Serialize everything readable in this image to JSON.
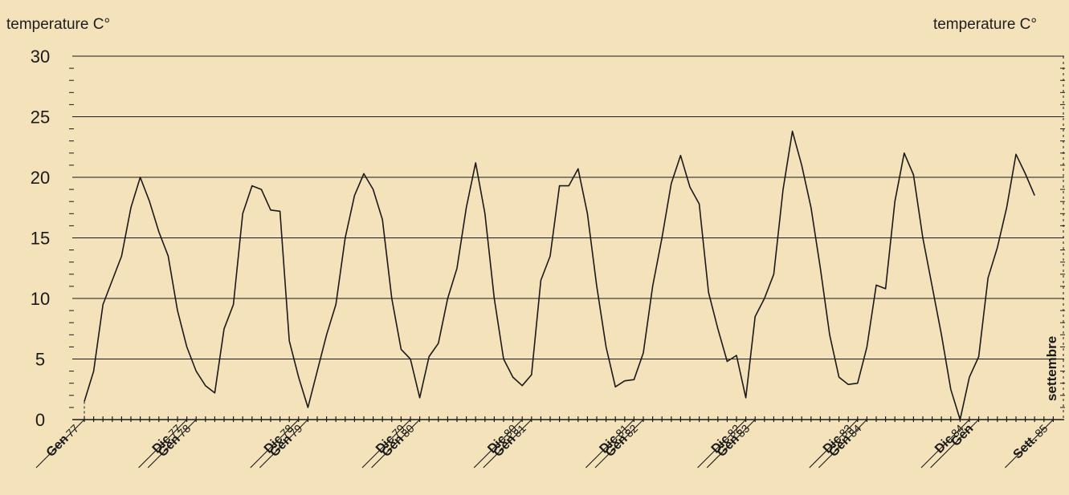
{
  "chart_data": {
    "type": "line",
    "ylabel_left": "temperature C°",
    "ylabel_right": "temperature C°",
    "ylim": [
      0,
      30
    ],
    "yticks": [
      "0",
      "5",
      "10",
      "15",
      "20",
      "25",
      "30"
    ],
    "grid": true,
    "line_color": "#1a1a1a",
    "right_annotation": "settembre",
    "x_labels": [
      {
        "month": "Gen",
        "year": "77",
        "x_month": 0
      },
      {
        "month": "Dic",
        "year": "77",
        "x_month": 11
      },
      {
        "month": "Gen",
        "year": "78",
        "x_month": 12
      },
      {
        "month": "Dic",
        "year": "78",
        "x_month": 23
      },
      {
        "month": "Gen",
        "year": "79",
        "x_month": 24
      },
      {
        "month": "Dic",
        "year": "79",
        "x_month": 35
      },
      {
        "month": "Gen",
        "year": "80",
        "x_month": 36
      },
      {
        "month": "Dic",
        "year": "80",
        "x_month": 47
      },
      {
        "month": "Gen",
        "year": "81",
        "x_month": 48
      },
      {
        "month": "Dic",
        "year": "81",
        "x_month": 59
      },
      {
        "month": "Gen",
        "year": "82",
        "x_month": 60
      },
      {
        "month": "Dic",
        "year": "82",
        "x_month": 71
      },
      {
        "month": "Gen",
        "year": "83",
        "x_month": 72
      },
      {
        "month": "Dic",
        "year": "83",
        "x_month": 83
      },
      {
        "month": "Gen",
        "year": "84",
        "x_month": 84
      },
      {
        "month": "Dic",
        "year": "84",
        "x_month": 95
      },
      {
        "month": "Gen",
        "year": "",
        "x_month": 96
      },
      {
        "month": "Sett.",
        "year": "85",
        "x_month": 104
      }
    ],
    "series": [
      {
        "values": [
          1.5,
          4,
          9.5,
          11.5,
          13.5,
          17.5,
          20,
          18,
          15.5,
          13.5,
          9,
          6,
          4,
          2.8,
          2.2,
          7.5,
          9.5,
          17,
          19.3,
          19,
          17.3,
          17.2,
          6.5,
          3.5,
          1,
          4,
          7,
          9.5,
          15,
          18.5,
          20.3,
          19,
          16.5,
          10,
          5.8,
          5,
          1.8,
          5.2,
          6.3,
          10,
          12.5,
          17.5,
          21.2,
          17,
          10,
          5,
          3.5,
          2.8,
          3.7,
          11.5,
          13.5,
          19.3,
          19.3,
          20.7,
          17,
          11,
          6,
          2.7,
          3.2,
          3.3,
          5.5,
          11,
          15,
          19.5,
          21.8,
          19.2,
          17.8,
          10.5,
          7.5,
          4.8,
          5.3,
          1.8,
          8.5,
          10,
          12,
          19,
          23.8,
          21,
          17.5,
          12.5,
          7,
          3.5,
          2.9,
          3,
          6,
          11.1,
          10.8,
          18,
          22,
          20.2,
          15,
          11,
          7,
          2.5,
          0,
          3.5,
          5.2,
          11.7,
          14.2,
          17.5,
          21.9,
          20.3,
          18.5
        ]
      }
    ]
  }
}
